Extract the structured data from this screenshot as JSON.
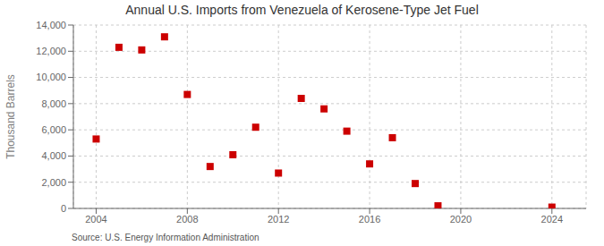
{
  "chart_data": {
    "type": "scatter",
    "title": "Annual U.S. Imports from Venezuela of Kerosene-Type Jet Fuel",
    "ylabel": "Thousand Barrels",
    "annotations": [
      "Source: U.S. Energy Information Administration"
    ],
    "x": [
      2004,
      2005,
      2006,
      2007,
      2008,
      2009,
      2010,
      2011,
      2012,
      2013,
      2014,
      2015,
      2016,
      2017,
      2018,
      2019,
      2024
    ],
    "values": [
      5300,
      12300,
      12100,
      13100,
      8700,
      3200,
      4100,
      6200,
      2700,
      8400,
      7600,
      5900,
      3400,
      5400,
      1900,
      200,
      100
    ],
    "color": "#cc0000",
    "marker": "square",
    "xlim": [
      2003.0,
      2025.5
    ],
    "xticks": [
      2004,
      2008,
      2012,
      2016,
      2020,
      2024
    ],
    "ylim": [
      0,
      14000
    ],
    "yticks": [
      0,
      {
        "value": 2000,
        "label": "2,000"
      },
      {
        "value": 4000,
        "label": "4,000"
      },
      {
        "value": 6000,
        "label": "6,000"
      },
      {
        "value": 8000,
        "label": "8,000"
      },
      {
        "value": 10000,
        "label": "10,000"
      },
      {
        "value": 12000,
        "label": "12,000"
      },
      {
        "value": 14000,
        "label": "14,000"
      }
    ],
    "grid": true
  }
}
